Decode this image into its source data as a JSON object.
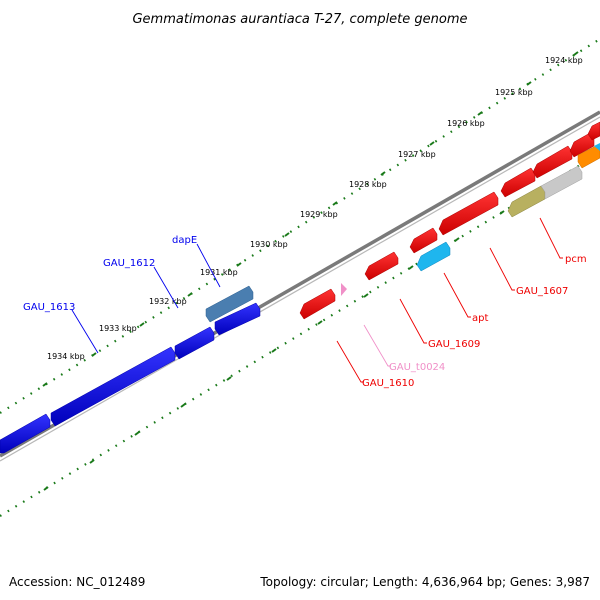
{
  "title": "Gemmatimonas aurantiaca T-27, complete genome",
  "footer": {
    "accession": "Accession: NC_012489",
    "summary": "Topology: circular; Length: 4,636,964 bp; Genes: 3,987"
  },
  "ruler_labels": [
    "1924 kbp",
    "1925 kbp",
    "1926 kbp",
    "1927 kbp",
    "1928 kbp",
    "1929 kbp",
    "1930 kbp",
    "1931 kbp",
    "1932 kbp",
    "1933 kbp",
    "1934 kbp"
  ],
  "labels": {
    "dapE": "dapE",
    "gau1612": "GAU_1612",
    "gau1613": "GAU_1613",
    "pcm": "pcm",
    "gau1607": "GAU_1607",
    "apt": "apt",
    "gau1609": "GAU_1609",
    "gau_t0024": "GAU_t0024",
    "gau1610": "GAU_1610"
  },
  "colors": {
    "blue": "#0000ee",
    "steel": "#4a7eb0",
    "red": "#ee0000",
    "cyan": "#1fb6ee",
    "orange": "#ff8c00",
    "olive": "#b8b060",
    "grey": "#c8c8c8",
    "pink": "#f090c8",
    "ruler": "#1a7a1a",
    "backbone": "#7a7a7a"
  }
}
